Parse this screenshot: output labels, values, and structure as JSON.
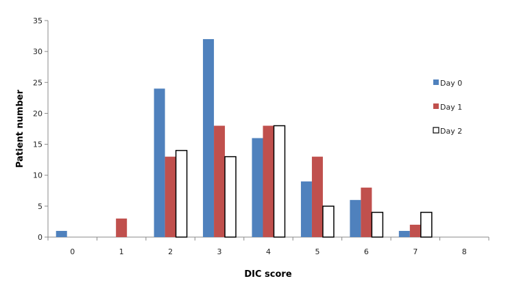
{
  "chart_data": {
    "type": "bar",
    "title": "",
    "xlabel": "DIC score",
    "ylabel": "Patient number",
    "categories": [
      "0",
      "1",
      "2",
      "3",
      "4",
      "5",
      "6",
      "7",
      "8"
    ],
    "yticks": [
      "0",
      "5",
      "10",
      "15",
      "20",
      "25",
      "30",
      "35"
    ],
    "ylim": [
      0,
      35
    ],
    "grid": false,
    "legend_position": "right",
    "series": [
      {
        "name": "Day 0",
        "color": "#4F81BD",
        "values": [
          1,
          0,
          24,
          32,
          16,
          9,
          6,
          1,
          0
        ]
      },
      {
        "name": "Day 1",
        "color": "#C0504D",
        "values": [
          0,
          3,
          13,
          18,
          18,
          13,
          8,
          2,
          0
        ]
      },
      {
        "name": "Day 2",
        "color": "#FFFFFF",
        "values": [
          0,
          0,
          14,
          13,
          18,
          5,
          4,
          4,
          0
        ]
      }
    ]
  }
}
